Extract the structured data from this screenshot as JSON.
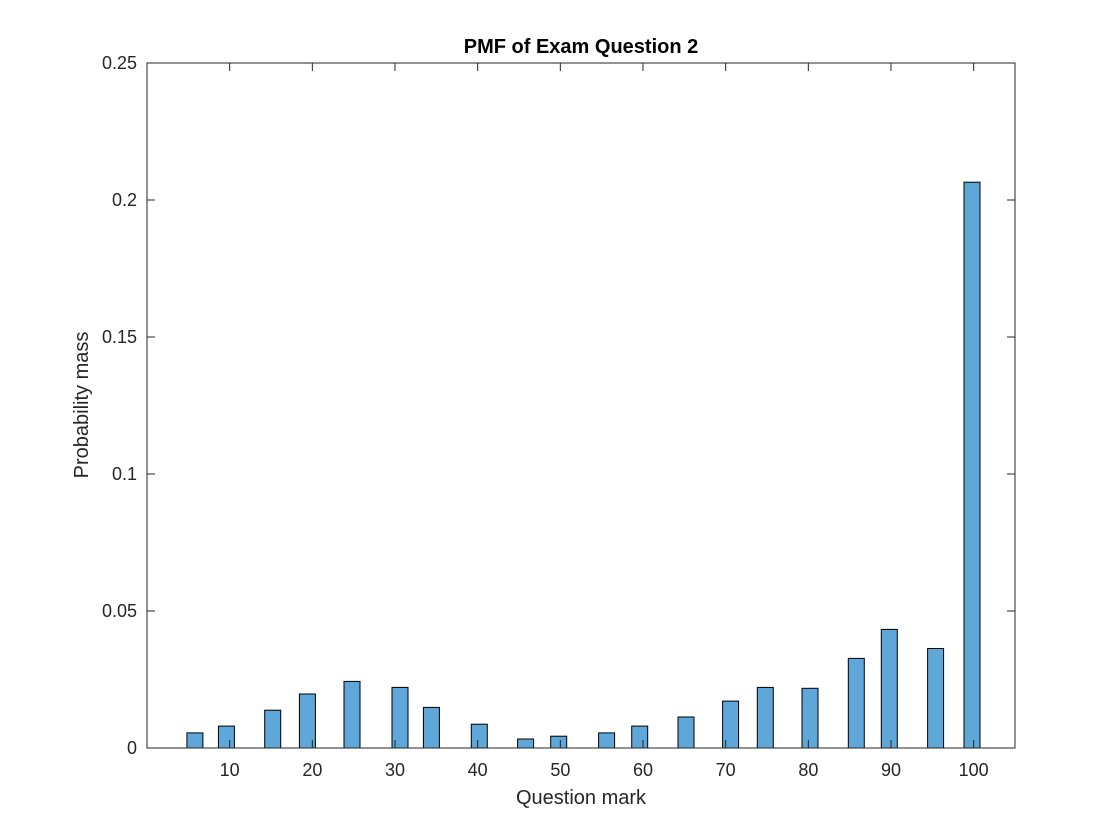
{
  "chart_data": {
    "type": "bar",
    "title": "PMF of Exam Question 2",
    "xlabel": "Question mark",
    "ylabel": "Probability mass",
    "xlim": [
      0,
      105
    ],
    "ylim": [
      0,
      0.25
    ],
    "xticks": [
      10,
      20,
      30,
      40,
      50,
      60,
      70,
      80,
      90,
      100
    ],
    "xtick_labels": [
      "10",
      "20",
      "30",
      "40",
      "50",
      "60",
      "70",
      "80",
      "90",
      "100"
    ],
    "yticks": [
      0,
      0.05,
      0.1,
      0.15,
      0.2,
      0.25
    ],
    "ytick_labels": [
      "0",
      "0.05",
      "0.1",
      "0.15",
      "0.2",
      "0.25"
    ],
    "grid": false,
    "bar_color": "#5fa6d9",
    "x": [
      5.8,
      9.6,
      15.2,
      19.4,
      24.8,
      30.6,
      34.4,
      40.2,
      45.8,
      49.8,
      55.6,
      59.6,
      65.2,
      70.6,
      74.8,
      80.2,
      85.8,
      89.8,
      95.4,
      99.8
    ],
    "values": [
      0.0055,
      0.008,
      0.0138,
      0.0197,
      0.0243,
      0.0221,
      0.0148,
      0.0087,
      0.0033,
      0.0043,
      0.0055,
      0.008,
      0.0113,
      0.0171,
      0.0221,
      0.0218,
      0.0327,
      0.0433,
      0.0363,
      0.2065
    ]
  }
}
